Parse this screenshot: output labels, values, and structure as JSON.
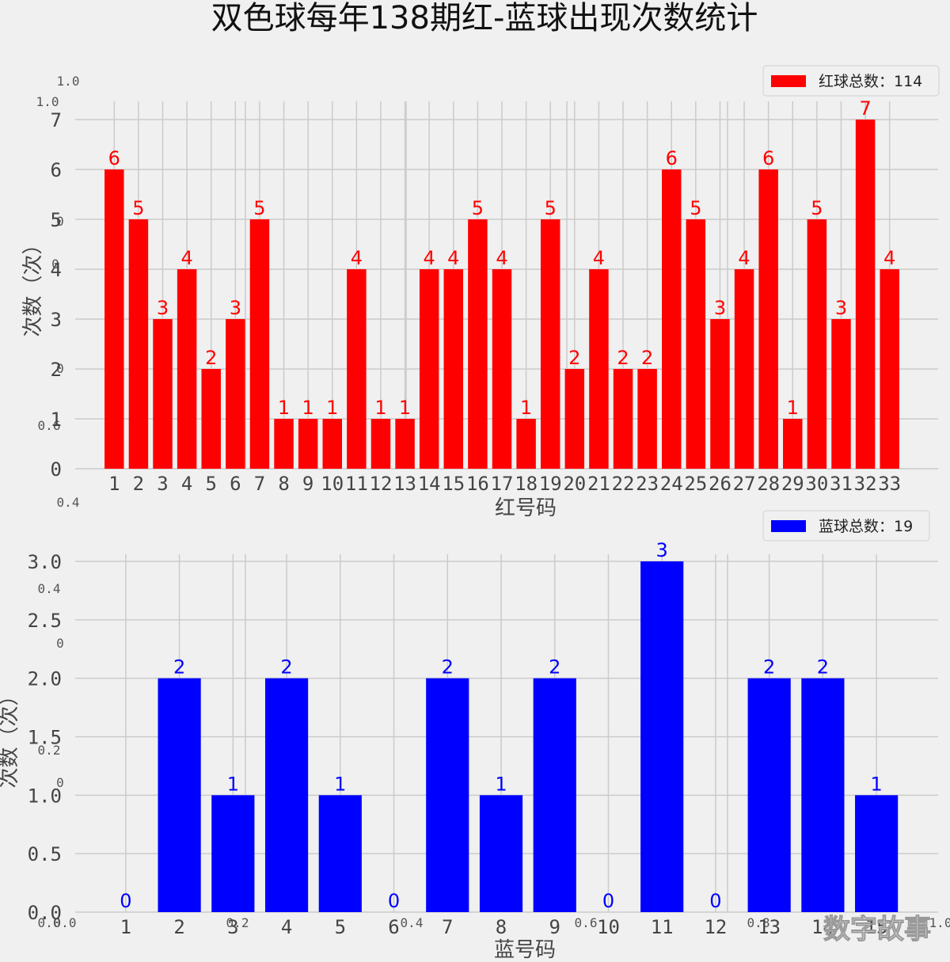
{
  "title": "双色球每年138期红-蓝球出现次数统计",
  "watermark": "数字故事",
  "colors": {
    "red": "#ff0000",
    "blue": "#0000ff",
    "grid": "#cbcbcb",
    "background": "#f0f0f0"
  },
  "chart_data": [
    {
      "type": "bar",
      "categories": [
        "1",
        "2",
        "3",
        "4",
        "5",
        "6",
        "7",
        "8",
        "9",
        "10",
        "11",
        "12",
        "13",
        "14",
        "15",
        "16",
        "17",
        "18",
        "19",
        "20",
        "21",
        "22",
        "23",
        "24",
        "25",
        "26",
        "27",
        "28",
        "29",
        "30",
        "31",
        "32",
        "33"
      ],
      "series": [
        {
          "name": "红球总数：114",
          "color": "#ff0000",
          "values": [
            6,
            5,
            3,
            4,
            2,
            3,
            5,
            1,
            1,
            1,
            4,
            1,
            1,
            4,
            4,
            5,
            4,
            1,
            5,
            2,
            4,
            2,
            2,
            6,
            5,
            3,
            4,
            6,
            1,
            5,
            3,
            7,
            4
          ]
        }
      ],
      "xlabel": "红号码",
      "ylabel": "次数（次）",
      "ylim": [
        0,
        7.35
      ],
      "yticks": [
        0,
        1,
        2,
        3,
        4,
        5,
        6,
        7
      ],
      "ytick_labels": [
        "0",
        "1",
        "2",
        "3",
        "4",
        "5",
        "6",
        "7"
      ],
      "grid": true,
      "legend": "top-right",
      "ghost_ticks": [
        "1.0",
        "1.0",
        "0",
        "0",
        "0",
        "0.6",
        "0.4"
      ]
    },
    {
      "type": "bar",
      "categories": [
        "1",
        "2",
        "3",
        "4",
        "5",
        "6",
        "7",
        "8",
        "9",
        "10",
        "11",
        "12",
        "13",
        "14",
        "15"
      ],
      "series": [
        {
          "name": "蓝球总数：19",
          "color": "#0000ff",
          "values": [
            0,
            2,
            1,
            2,
            1,
            0,
            2,
            1,
            2,
            0,
            3,
            0,
            2,
            2,
            1
          ]
        }
      ],
      "xlabel": "蓝号码",
      "ylabel": "次数（次）",
      "ylim": [
        0,
        3.0
      ],
      "yticks": [
        0,
        0.5,
        1.0,
        1.5,
        2.0,
        2.5,
        3.0
      ],
      "ytick_labels": [
        "0.0",
        "0.5",
        "1.0",
        "1.5",
        "2.0",
        "2.5",
        "3.0"
      ],
      "grid": true,
      "legend": "top-right",
      "ghost_ticks": [
        "0.4",
        "0",
        "0.2",
        "0",
        "0.0",
        "0.0",
        "0.2",
        "0.4",
        "0.6",
        "0.8",
        "1.0"
      ]
    }
  ]
}
